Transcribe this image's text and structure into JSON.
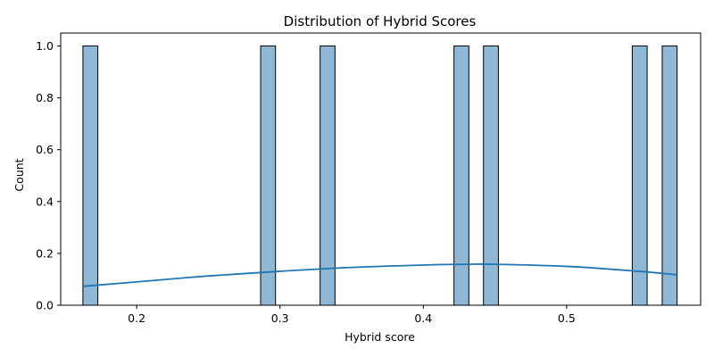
{
  "chart_data": {
    "type": "bar",
    "title": "Distribution of Hybrid Scores",
    "xlabel": "Hybrid score",
    "ylabel": "Count",
    "xlim": [
      0.147,
      0.5935
    ],
    "ylim": [
      0,
      1.05
    ],
    "x_ticks": [
      0.2,
      0.3,
      0.4,
      0.5
    ],
    "x_tick_labels": [
      "0.2",
      "0.3",
      "0.4",
      "0.5"
    ],
    "y_ticks": [
      0.0,
      0.2,
      0.4,
      0.6,
      0.8,
      1.0
    ],
    "y_tick_labels": [
      "0.0",
      "0.2",
      "0.4",
      "0.6",
      "0.8",
      "1.0"
    ],
    "bin_width": 0.0104,
    "bins": [
      {
        "start": 0.1625,
        "count": 1
      },
      {
        "start": 0.2865,
        "count": 1
      },
      {
        "start": 0.328,
        "count": 1
      },
      {
        "start": 0.4214,
        "count": 1
      },
      {
        "start": 0.442,
        "count": 1
      },
      {
        "start": 0.5458,
        "count": 1
      },
      {
        "start": 0.5667,
        "count": 1
      }
    ],
    "kde": {
      "x": [
        0.1625,
        0.2,
        0.25,
        0.3,
        0.35,
        0.4,
        0.43,
        0.45,
        0.5,
        0.55,
        0.5771
      ],
      "y": [
        0.073,
        0.09,
        0.113,
        0.131,
        0.146,
        0.155,
        0.158,
        0.158,
        0.15,
        0.131,
        0.117
      ]
    },
    "grid": false,
    "colors": {
      "bar_fill": "#8fb8d6",
      "bar_edge": "#000000",
      "kde_line": "#1f77b4"
    }
  }
}
